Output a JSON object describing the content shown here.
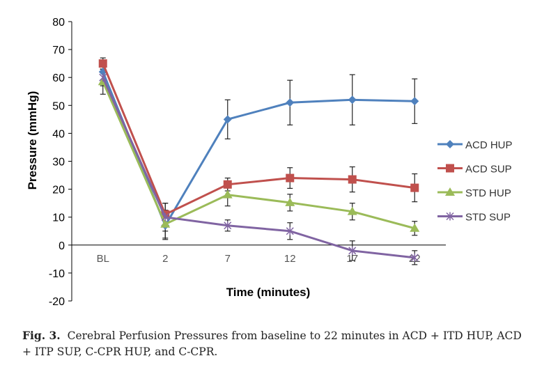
{
  "chart_data": {
    "type": "line",
    "title": "",
    "xlabel": "Time (minutes)",
    "ylabel": "Pressure (mmHg)",
    "categories": [
      "BL",
      "2",
      "7",
      "12",
      "17",
      "22"
    ],
    "ylim": [
      -20,
      80
    ],
    "yticks": [
      -20,
      -10,
      0,
      10,
      20,
      30,
      40,
      50,
      60,
      70,
      80
    ],
    "grid": false,
    "legend_position": "right",
    "error_bars": true,
    "series": [
      {
        "name": "ACD HUP",
        "color": "#4f81bd",
        "marker": "diamond",
        "values": [
          62,
          7,
          45,
          51,
          52,
          51.5
        ],
        "errors": [
          4,
          5,
          7,
          8,
          9,
          8
        ]
      },
      {
        "name": "ACD SUP",
        "color": "#c0504d",
        "marker": "square",
        "values": [
          65,
          11,
          21.7,
          24,
          23.5,
          20.5
        ],
        "errors": [
          2,
          4,
          2.3,
          3.7,
          4.5,
          5
        ]
      },
      {
        "name": "STD HUP",
        "color": "#9bbb59",
        "marker": "triangle",
        "values": [
          58.5,
          7.5,
          18,
          15.2,
          12,
          6
        ],
        "errors": [
          4.5,
          5,
          4,
          3,
          3,
          2.5
        ]
      },
      {
        "name": "STD SUP",
        "color": "#8064a2",
        "marker": "x",
        "values": [
          60,
          10,
          7,
          5,
          -2,
          -4.5
        ],
        "errors": [
          3,
          5,
          2,
          3,
          3.5,
          2.5
        ]
      }
    ]
  },
  "caption": {
    "label": "Fig. 3.",
    "text": "Cerebral Perfusion Pressures from baseline to 22 minutes in ACD + ITD HUP, ACD + ITP SUP, C-CPR HUP, and C-CPR."
  }
}
